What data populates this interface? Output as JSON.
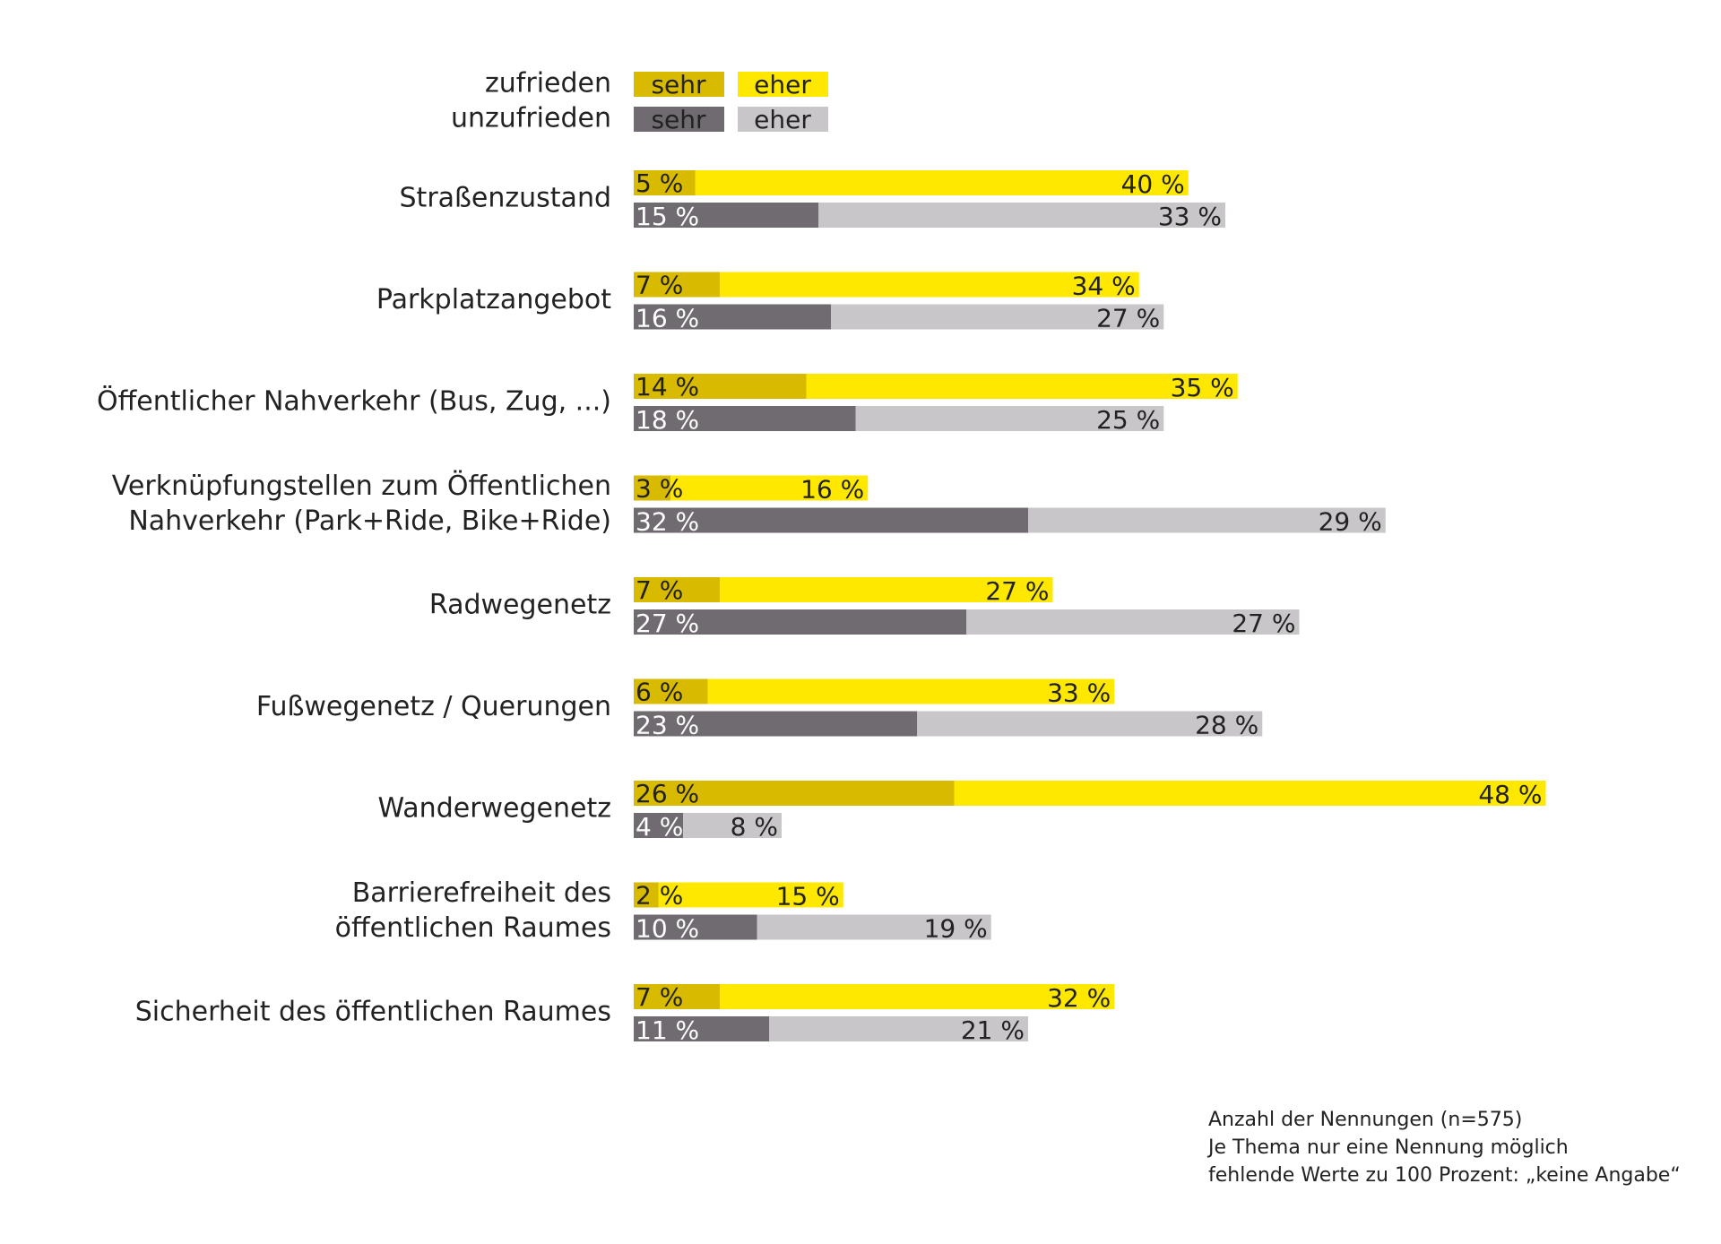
{
  "chart_data": {
    "type": "bar",
    "orientation": "horizontal",
    "stacked": true,
    "legend": {
      "row_labels": [
        "zufrieden",
        "unzufrieden"
      ],
      "entries": [
        {
          "group": "zufrieden",
          "label": "sehr"
        },
        {
          "group": "zufrieden",
          "label": "eher"
        },
        {
          "group": "unzufrieden",
          "label": "sehr"
        },
        {
          "group": "unzufrieden",
          "label": "eher"
        }
      ],
      "placement": "top-left"
    },
    "colors": {
      "zufrieden_sehr": "#d8ba00",
      "zufrieden_eher": "#ffe800",
      "unzufrieden_sehr": "#6f6b70",
      "unzufrieden_eher": "#c8c6c8"
    },
    "categories": [
      {
        "label": [
          "Straßenzustand"
        ],
        "zufrieden": {
          "sehr": 5,
          "eher": 40
        },
        "unzufrieden": {
          "sehr": 15,
          "eher": 33
        }
      },
      {
        "label": [
          "Parkplatzangebot"
        ],
        "zufrieden": {
          "sehr": 7,
          "eher": 34
        },
        "unzufrieden": {
          "sehr": 16,
          "eher": 27
        }
      },
      {
        "label": [
          "Öffentlicher Nahverkehr (Bus, Zug, ...)"
        ],
        "zufrieden": {
          "sehr": 14,
          "eher": 35
        },
        "unzufrieden": {
          "sehr": 18,
          "eher": 25
        }
      },
      {
        "label": [
          "Verknüpfungstellen zum Öffentlichen",
          "Nahverkehr (Park+Ride, Bike+Ride)"
        ],
        "zufrieden": {
          "sehr": 3,
          "eher": 16
        },
        "unzufrieden": {
          "sehr": 32,
          "eher": 29
        }
      },
      {
        "label": [
          "Radwegenetz"
        ],
        "zufrieden": {
          "sehr": 7,
          "eher": 27
        },
        "unzufrieden": {
          "sehr": 27,
          "eher": 27
        }
      },
      {
        "label": [
          "Fußwegenetz / Querungen"
        ],
        "zufrieden": {
          "sehr": 6,
          "eher": 33
        },
        "unzufrieden": {
          "sehr": 23,
          "eher": 28
        }
      },
      {
        "label": [
          "Wanderwegenetz"
        ],
        "zufrieden": {
          "sehr": 26,
          "eher": 48
        },
        "unzufrieden": {
          "sehr": 4,
          "eher": 8
        }
      },
      {
        "label": [
          "Barrierefreiheit des",
          "öffentlichen Raumes"
        ],
        "zufrieden": {
          "sehr": 2,
          "eher": 15
        },
        "unzufrieden": {
          "sehr": 10,
          "eher": 19
        }
      },
      {
        "label": [
          "Sicherheit des öffentlichen Raumes"
        ],
        "zufrieden": {
          "sehr": 7,
          "eher": 32
        },
        "unzufrieden": {
          "sehr": 11,
          "eher": 21
        }
      }
    ],
    "value_suffix": " %",
    "notes": [
      "Anzahl der Nennungen (n=575)",
      "Je Thema nur eine Nennung möglich",
      "fehlende Werte zu 100 Prozent: „keine Angabe“"
    ]
  }
}
